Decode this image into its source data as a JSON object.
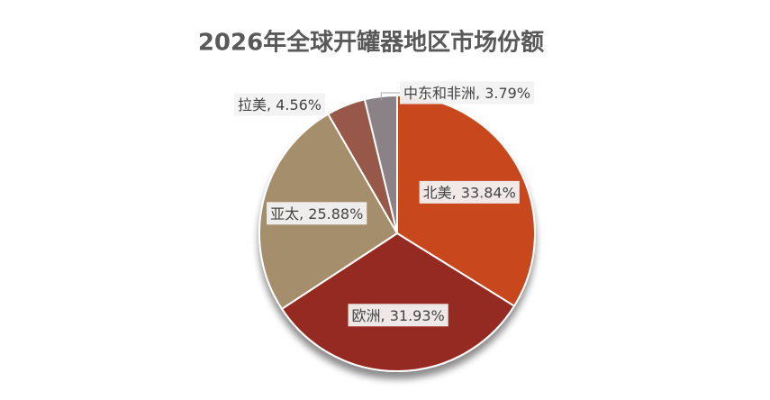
{
  "chart_data": {
    "type": "pie",
    "title": "2026年全球开罐器地区市场份额",
    "categories": [
      "北美",
      "欧洲",
      "亚太",
      "拉美",
      "中东和非洲"
    ],
    "values": [
      33.84,
      31.93,
      25.88,
      4.56,
      3.79
    ],
    "value_labels": [
      "33.84%",
      "31.93%",
      "25.88%",
      "4.56%",
      "3.79%"
    ],
    "colors": [
      "#c8461c",
      "#952c22",
      "#a58e6c",
      "#975848",
      "#8b8287"
    ]
  }
}
